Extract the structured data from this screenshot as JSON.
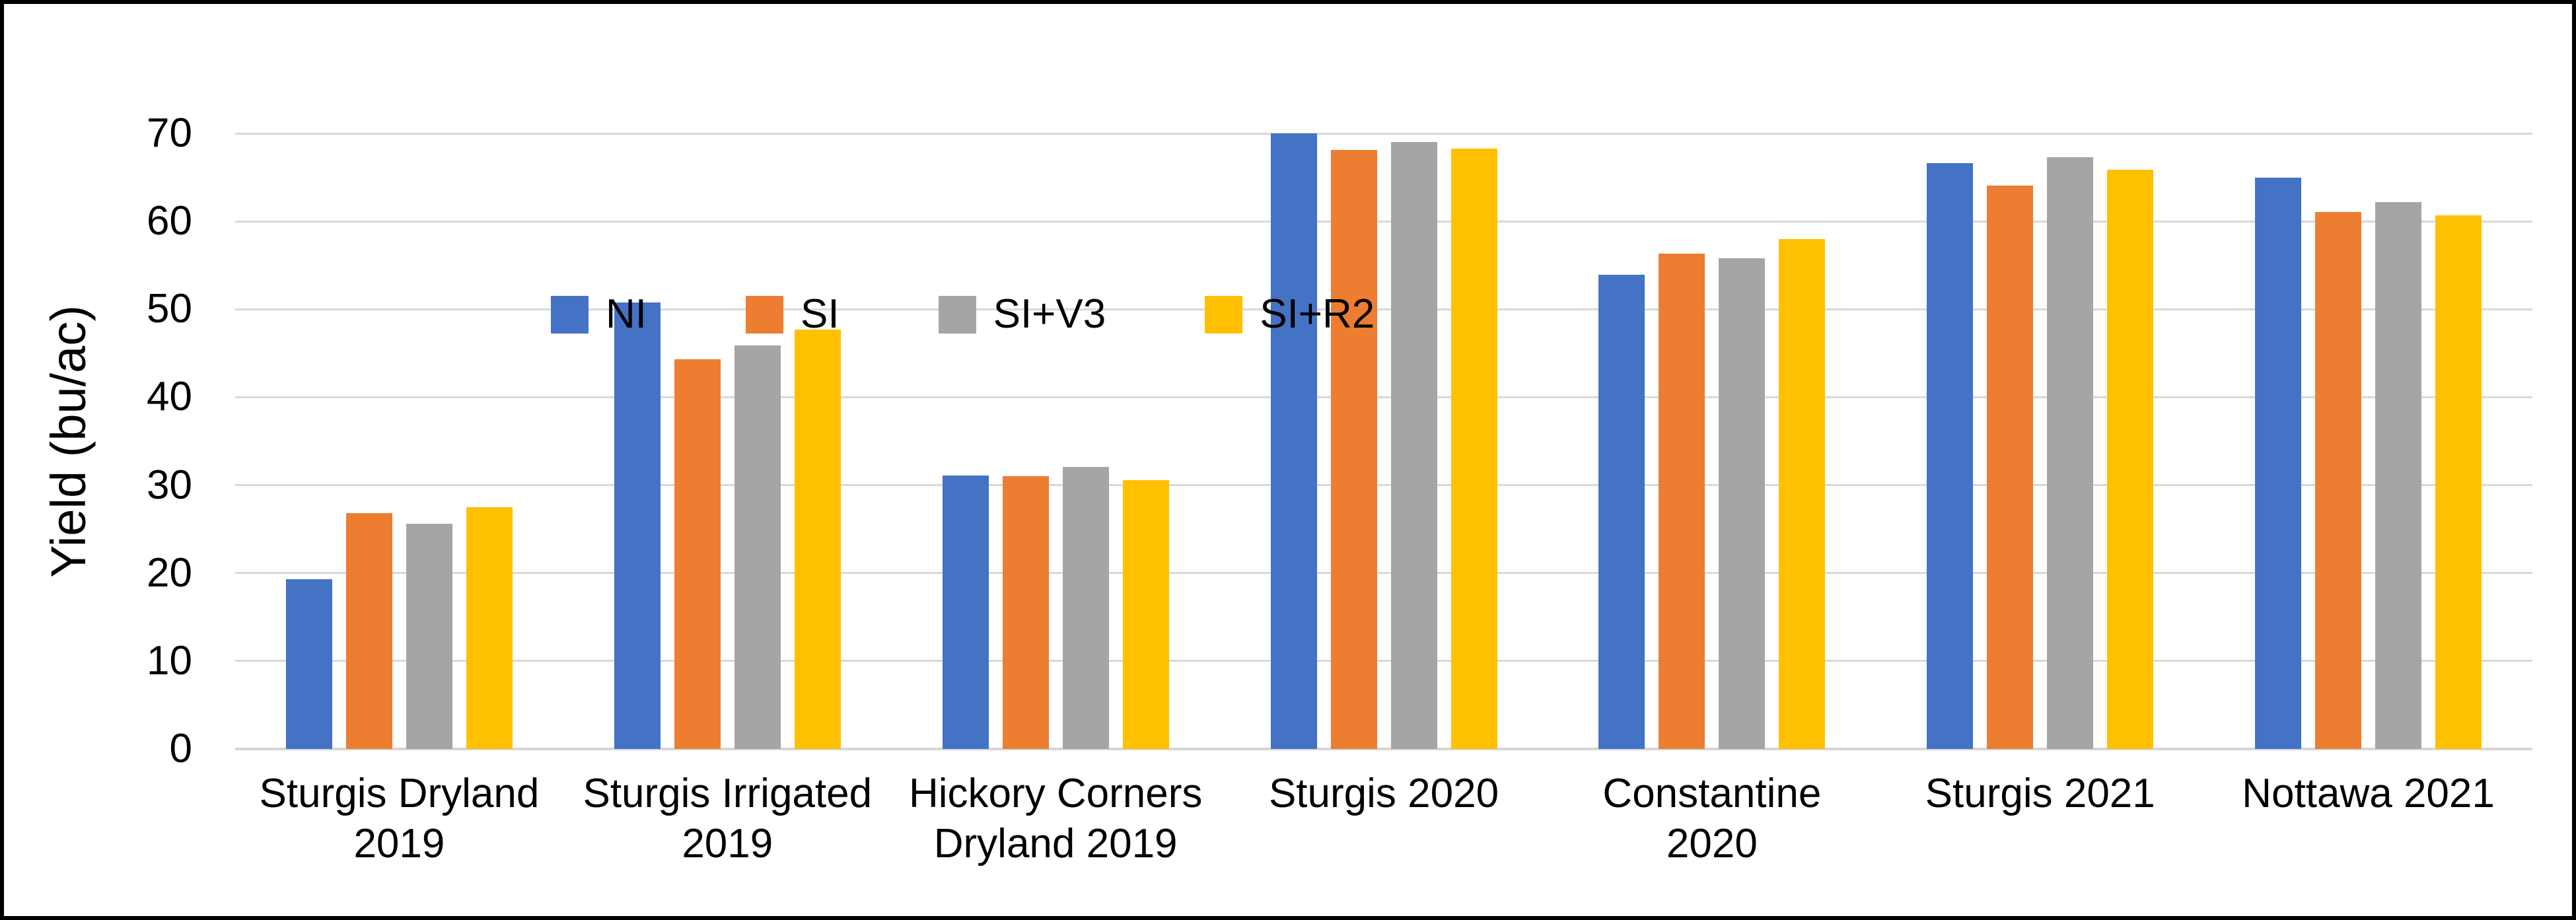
{
  "chart_data": {
    "type": "bar",
    "title": "",
    "xlabel": "",
    "ylabel": "Yield (bu/ac)",
    "ylim": [
      0,
      70
    ],
    "yticks": [
      0,
      10,
      20,
      30,
      40,
      50,
      60,
      70
    ],
    "grid": "horizontal",
    "grid_color": "#d9d9d9",
    "axis_line_color": "#d6d6d6",
    "frame_color": "#000000",
    "legend_position": "top-left-inside",
    "categories": [
      "Sturgis Dryland\n2019",
      "Sturgis Irrigated\n2019",
      "Hickory Corners\nDryland 2019",
      "Sturgis 2020",
      "Constantine\n2020",
      "Sturgis 2021",
      "Nottawa 2021"
    ],
    "series": [
      {
        "name": "NI",
        "color": "#4472C4",
        "values": [
          19.3,
          50.8,
          31.1,
          70.0,
          53.9,
          66.6,
          65.0
        ]
      },
      {
        "name": "SI",
        "color": "#ED7D31",
        "values": [
          26.8,
          44.3,
          31.0,
          68.1,
          56.3,
          64.1,
          61.1
        ]
      },
      {
        "name": "SI+V3",
        "color": "#A5A5A5",
        "values": [
          25.6,
          45.9,
          32.1,
          69.0,
          55.8,
          67.3,
          62.2
        ]
      },
      {
        "name": "SI+R2",
        "color": "#FFC000",
        "values": [
          27.5,
          47.7,
          30.6,
          68.3,
          58.0,
          65.9,
          60.7
        ]
      }
    ]
  }
}
